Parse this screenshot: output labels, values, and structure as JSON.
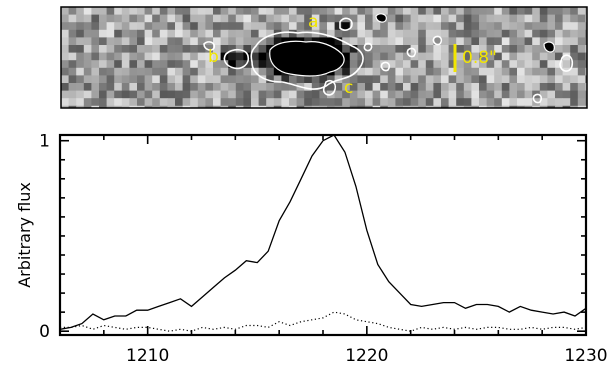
{
  "image_panel": {
    "component_labels": [
      "a",
      "b",
      "c"
    ],
    "scale_label": "0.8\"",
    "colors": {
      "label": "#f2e600",
      "contour": "#ffffff"
    }
  },
  "chart_data": {
    "type": "line",
    "x": [
      1206,
      1206.5,
      1207,
      1207.5,
      1208,
      1208.5,
      1209,
      1209.5,
      1210,
      1210.5,
      1211,
      1211.5,
      1212,
      1212.5,
      1213,
      1213.5,
      1214,
      1214.5,
      1215,
      1215.5,
      1216,
      1216.5,
      1217,
      1217.5,
      1218,
      1218.5,
      1219,
      1219.5,
      1220,
      1220.5,
      1221,
      1221.5,
      1222,
      1222.5,
      1223,
      1223.5,
      1224,
      1224.5,
      1225,
      1225.5,
      1226,
      1226.5,
      1227,
      1227.5,
      1228,
      1228.5,
      1229,
      1229.5,
      1230
    ],
    "series": [
      {
        "style": "solid",
        "values": [
          0.01,
          0.02,
          0.04,
          0.09,
          0.06,
          0.08,
          0.08,
          0.11,
          0.11,
          0.13,
          0.15,
          0.17,
          0.13,
          0.18,
          0.23,
          0.28,
          0.32,
          0.37,
          0.36,
          0.42,
          0.58,
          0.68,
          0.8,
          0.92,
          1.0,
          1.03,
          0.94,
          0.76,
          0.53,
          0.35,
          0.26,
          0.2,
          0.14,
          0.13,
          0.14,
          0.15,
          0.15,
          0.12,
          0.14,
          0.14,
          0.13,
          0.1,
          0.13,
          0.11,
          0.1,
          0.09,
          0.1,
          0.08,
          0.12
        ]
      },
      {
        "style": "dotted",
        "values": [
          0.02,
          0.02,
          0.03,
          0.01,
          0.03,
          0.02,
          0.01,
          0.02,
          0.02,
          0.01,
          0.0,
          0.01,
          0.0,
          0.02,
          0.01,
          0.02,
          0.01,
          0.03,
          0.03,
          0.02,
          0.05,
          0.03,
          0.05,
          0.06,
          0.07,
          0.1,
          0.09,
          0.06,
          0.05,
          0.04,
          0.02,
          0.01,
          0.0,
          0.02,
          0.01,
          0.02,
          0.01,
          0.02,
          0.01,
          0.02,
          0.02,
          0.01,
          0.01,
          0.02,
          0.01,
          0.02,
          0.02,
          0.01,
          0.02
        ]
      }
    ],
    "ylabel": "Arbitrary flux",
    "xlim": [
      1206,
      1230
    ],
    "ylim": [
      -0.02,
      1.03
    ],
    "xticks": [
      "1210",
      "1220",
      "1230"
    ],
    "yticks": [
      "0",
      "1"
    ],
    "grid": false
  }
}
